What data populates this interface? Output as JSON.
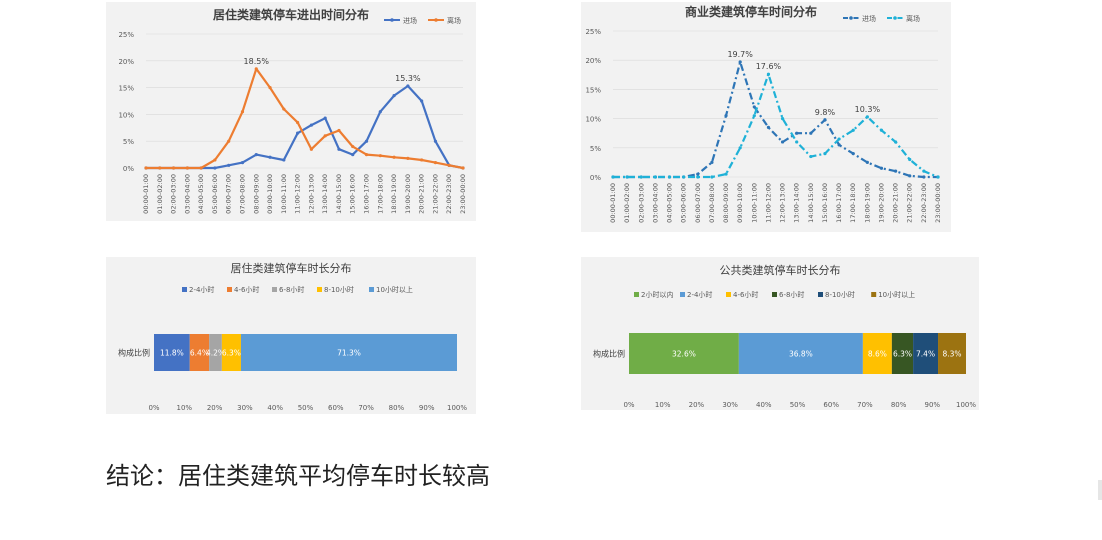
{
  "line_times": [
    "00:00-01:00",
    "01:00-02:00",
    "02:00-03:00",
    "03:00-04:00",
    "04:00-05:00",
    "05:00-06:00",
    "06:00-07:00",
    "07:00-08:00",
    "08:00-09:00",
    "09:00-10:00",
    "10:00-11:00",
    "11:00-12:00",
    "12:00-13:00",
    "13:00-14:00",
    "14:00-15:00",
    "15:00-16:00",
    "16:00-17:00",
    "17:00-18:00",
    "18:00-19:00",
    "19:00-20:00",
    "20:00-21:00",
    "21:00-22:00",
    "22:00-23:00",
    "23:00-00:00"
  ],
  "conclusion": "结论：居住类建筑平均停车时长较高",
  "chart_data": [
    {
      "type": "line",
      "title": "居住类建筑停车进出时间分布",
      "ylim": [
        0,
        25
      ],
      "yticks": [
        "0%",
        "5%",
        "10%",
        "15%",
        "20%",
        "25%"
      ],
      "legend_position": "top-right",
      "series": [
        {
          "name": "进场",
          "color": "#4472c4",
          "style": "solid",
          "values": [
            0,
            0,
            0,
            0,
            0,
            0,
            0.5,
            1,
            2.5,
            2,
            1.5,
            6.5,
            8,
            9.3,
            3.5,
            2.5,
            5,
            10.5,
            13.5,
            15.3,
            12.5,
            5,
            0.5,
            0
          ],
          "labels": {
            "19": "15.3%"
          }
        },
        {
          "name": "离场",
          "color": "#ed7d31",
          "style": "solid",
          "values": [
            0,
            0,
            0,
            0,
            0,
            1.5,
            5,
            10.5,
            18.5,
            15,
            11,
            8.5,
            3.5,
            6,
            7,
            4,
            2.5,
            2.3,
            2,
            1.8,
            1.5,
            1,
            0.5,
            0
          ],
          "labels": {
            "8": "18.5%"
          }
        }
      ]
    },
    {
      "type": "line",
      "title": "商业类建筑停车时间分布",
      "ylim": [
        0,
        25
      ],
      "yticks": [
        "0%",
        "5%",
        "10%",
        "15%",
        "20%",
        "25%"
      ],
      "legend_position": "top-right",
      "series": [
        {
          "name": "进场",
          "color": "#2e75b6",
          "style": "dashdot",
          "values": [
            0,
            0,
            0,
            0,
            0,
            0,
            0.5,
            2.5,
            10.5,
            19.7,
            12,
            8.5,
            6,
            7.5,
            7.5,
            9.8,
            5.5,
            4,
            2.5,
            1.5,
            1,
            0.2,
            0,
            0
          ],
          "labels": {
            "9": "19.7%",
            "15": "9.8%"
          }
        },
        {
          "name": "离场",
          "color": "#1fb1d7",
          "style": "dashdot",
          "values": [
            0,
            0,
            0,
            0,
            0,
            0,
            0,
            0,
            0.5,
            5,
            10.5,
            17.6,
            10,
            6,
            3.5,
            4,
            6.5,
            8,
            10.3,
            8,
            6,
            3,
            1,
            0
          ],
          "labels": {
            "11": "17.6%",
            "18": "10.3%"
          }
        }
      ]
    },
    {
      "type": "bar",
      "orientation": "horizontal",
      "stacked": true,
      "title": "居住类建筑停车时长分布",
      "category": "构成比例",
      "xlim": [
        0,
        100
      ],
      "xticks": [
        "0%",
        "10%",
        "20%",
        "30%",
        "40%",
        "50%",
        "60%",
        "70%",
        "80%",
        "90%",
        "100%"
      ],
      "legend_position": "top",
      "segments": [
        {
          "name": "2-4小时",
          "value": 11.8,
          "label": "11.8%",
          "color": "#4472c4"
        },
        {
          "name": "4-6小时",
          "value": 6.4,
          "label": "6.4%",
          "color": "#ed7d31"
        },
        {
          "name": "6-8小时",
          "value": 4.2,
          "label": "4.2%",
          "color": "#a5a5a5"
        },
        {
          "name": "8-10小时",
          "value": 6.3,
          "label": "6.3%",
          "color": "#ffc000"
        },
        {
          "name": "10小时以上",
          "value": 71.3,
          "label": "71.3%",
          "color": "#5b9bd5"
        }
      ]
    },
    {
      "type": "bar",
      "orientation": "horizontal",
      "stacked": true,
      "title": "公共类建筑停车时长分布",
      "category": "构成比例",
      "xlim": [
        0,
        100
      ],
      "xticks": [
        "0%",
        "10%",
        "20%",
        "30%",
        "40%",
        "50%",
        "60%",
        "70%",
        "80%",
        "90%",
        "100%"
      ],
      "legend_position": "top",
      "segments": [
        {
          "name": "2小时以内",
          "value": 32.6,
          "label": "32.6%",
          "color": "#70ad47"
        },
        {
          "name": "2-4小时",
          "value": 36.8,
          "label": "36.8%",
          "color": "#5b9bd5"
        },
        {
          "name": "4-6小时",
          "value": 8.6,
          "label": "8.6%",
          "color": "#ffc000"
        },
        {
          "name": "6-8小时",
          "value": 6.3,
          "label": "6.3%",
          "color": "#375623"
        },
        {
          "name": "8-10小时",
          "value": 7.4,
          "label": "7.4%",
          "color": "#1f4e79"
        },
        {
          "name": "10小时以上",
          "value": 8.3,
          "label": "8.3%",
          "color": "#9c7311"
        }
      ]
    }
  ]
}
